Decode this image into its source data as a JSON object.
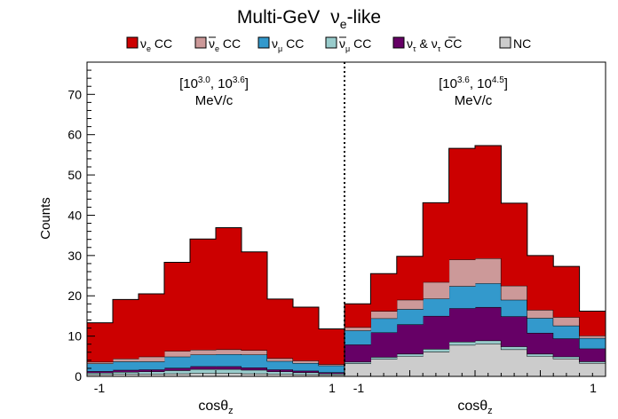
{
  "chart_data": {
    "type": "area",
    "title": {
      "main": "Multi-GeV",
      "nu": "ν",
      "sub": "e",
      "suffix": "-like"
    },
    "ylabel": "Counts",
    "xlabel": {
      "main": "cosθ",
      "sub": "z"
    },
    "ylim": [
      0,
      78
    ],
    "yticks": [
      0,
      10,
      20,
      30,
      40,
      50,
      60,
      70
    ],
    "legend": {
      "placement": "top",
      "entries": [
        {
          "key": "nue_cc",
          "main": "ν",
          "sub": "e",
          "suffix": " CC",
          "bar": false
        },
        {
          "key": "nuebar_cc",
          "main": "ν",
          "sub": "e",
          "suffix": " CC",
          "bar": true
        },
        {
          "key": "numu_cc",
          "main": "ν",
          "sub": "μ",
          "suffix": " CC",
          "bar": false
        },
        {
          "key": "numubar_cc",
          "main": "ν",
          "sub": "μ",
          "suffix": " CC",
          "bar": true
        },
        {
          "key": "nutau_cc",
          "main": "ν",
          "sub": "τ",
          "mid": " & ",
          "main2": "ν",
          "sub2": "τ",
          "suffix": " CC",
          "bar": false
        },
        {
          "key": "nc",
          "main": "NC",
          "sub": "",
          "suffix": "",
          "bar": false
        }
      ]
    },
    "colors": {
      "nue_cc": "#cc0000",
      "nuebar_cc": "#cc9999",
      "numu_cc": "#3399cc",
      "numubar_cc": "#99cccc",
      "nutau_cc": "#660066",
      "nc": "#cccccc",
      "outline": "#000000"
    },
    "panels": [
      {
        "label": {
          "prefix": "[10",
          "exp1": "3.0",
          "mid": ", 10",
          "exp2": "3.6",
          "suffix": "]",
          "unit": "MeV/c"
        },
        "xlim": [
          -1,
          1
        ],
        "xticks": [
          {
            "v": -1,
            "label": "-1"
          },
          {
            "v": 1,
            "label": "1"
          }
        ],
        "bins": 10,
        "stacks": {
          "nc": [
            0.5,
            0.6,
            0.6,
            0.7,
            0.8,
            0.8,
            0.7,
            0.6,
            0.5,
            0.4
          ],
          "numubar_cc": [
            0.4,
            0.5,
            0.6,
            0.8,
            1.0,
            1.0,
            0.9,
            0.6,
            0.5,
            0.3
          ],
          "nutau_cc": [
            0.4,
            0.5,
            0.5,
            0.6,
            0.7,
            0.7,
            0.6,
            0.5,
            0.4,
            0.3
          ],
          "numu_cc": [
            1.9,
            2.1,
            2.0,
            2.8,
            2.9,
            3.0,
            3.2,
            2.1,
            1.9,
            1.7
          ],
          "nuebar_cc": [
            0.4,
            0.7,
            1.2,
            1.4,
            1.2,
            1.2,
            1.1,
            0.7,
            0.6,
            0.3
          ],
          "nue_cc": [
            9.7,
            14.7,
            15.6,
            22.0,
            27.5,
            30.2,
            24.4,
            14.7,
            13.3,
            8.8
          ]
        }
      },
      {
        "label": {
          "prefix": "[10",
          "exp1": "3.6",
          "mid": ", 10",
          "exp2": "4.5",
          "suffix": "]",
          "unit": "MeV/c"
        },
        "xlim": [
          -1,
          1
        ],
        "xticks": [
          {
            "v": -1,
            "label": "-1"
          },
          {
            "v": 1,
            "label": "1"
          }
        ],
        "bins": 10,
        "stacks": {
          "nc": [
            3.2,
            4.3,
            5.0,
            6.1,
            7.8,
            8.1,
            6.7,
            5.0,
            4.4,
            3.3
          ],
          "numubar_cc": [
            0.4,
            0.5,
            0.6,
            0.7,
            0.8,
            0.8,
            0.7,
            0.6,
            0.5,
            0.4
          ],
          "nutau_cc": [
            4.3,
            6.1,
            7.3,
            8.2,
            8.3,
            8.3,
            7.5,
            5.2,
            4.5,
            3.2
          ],
          "numu_cc": [
            3.5,
            3.5,
            3.8,
            4.3,
            5.5,
            5.9,
            4.1,
            3.7,
            3.2,
            2.6
          ],
          "nuebar_cc": [
            0.8,
            1.8,
            2.3,
            4.1,
            6.6,
            6.2,
            3.5,
            2.0,
            2.1,
            0.6
          ],
          "nue_cc": [
            5.8,
            9.3,
            10.8,
            19.7,
            27.6,
            28.0,
            20.5,
            13.5,
            12.6,
            6.1
          ]
        }
      }
    ]
  }
}
